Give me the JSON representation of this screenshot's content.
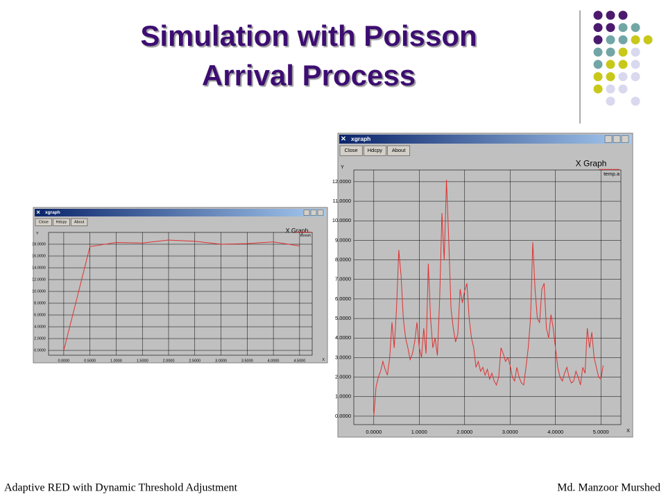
{
  "slide": {
    "title": [
      "Simulation with Poisson",
      "Arrival Process"
    ],
    "footer_left": "Adaptive RED with Dynamic Threshold Adjustment",
    "footer_right": "Md. Manzoor Murshed"
  },
  "windows": [
    {
      "title": "xgraph",
      "buttons": [
        "Close",
        "Hdcpy",
        "About"
      ],
      "graph_title": "X Graph",
      "y_axis_label": "Y",
      "x_axis_label": "X",
      "chart_data": {
        "type": "line",
        "grid": true,
        "x": [
          0,
          0.5,
          1,
          1.5,
          2,
          2.5,
          3,
          3.5,
          4,
          4.5
        ],
        "series": [
          {
            "name": "thresh",
            "color": "#e03030",
            "values": [
              0,
              17.6,
              18.3,
              18.2,
              18.7,
              18.5,
              18.0,
              18.1,
              18.4,
              17.7
            ]
          }
        ],
        "xlim": [
          -0.29,
          4.74
        ],
        "ylim": [
          -0.82,
          20
        ],
        "xticks": [
          {
            "value": 0,
            "label": "0.0000"
          },
          {
            "value": 0.5,
            "label": "0.5000"
          },
          {
            "value": 1,
            "label": "1.0000"
          },
          {
            "value": 1.5,
            "label": "1.5000"
          },
          {
            "value": 2,
            "label": "2.0000"
          },
          {
            "value": 2.5,
            "label": "2.5000"
          },
          {
            "value": 3,
            "label": "3.0000"
          },
          {
            "value": 3.5,
            "label": "3.5000"
          },
          {
            "value": 4,
            "label": "4.0000"
          },
          {
            "value": 4.5,
            "label": "4.5000"
          }
        ],
        "yticks": [
          {
            "value": 0,
            "label": "0.0000"
          },
          {
            "value": 2,
            "label": "2.0000"
          },
          {
            "value": 4,
            "label": "4.0000"
          },
          {
            "value": 6,
            "label": "6.0000"
          },
          {
            "value": 8,
            "label": "8.0000"
          },
          {
            "value": 10,
            "label": "10.0000"
          },
          {
            "value": 12,
            "label": "12.0000"
          },
          {
            "value": 14,
            "label": "14.0000"
          },
          {
            "value": 16,
            "label": "16.0000"
          },
          {
            "value": 18,
            "label": "18.0000"
          }
        ]
      }
    },
    {
      "title": "xgraph",
      "buttons": [
        "Close",
        "Hdcpy",
        "About"
      ],
      "graph_title": "X Graph",
      "y_axis_label": "Y",
      "x_axis_label": "X",
      "chart_data": {
        "type": "line",
        "grid": true,
        "x": [
          0,
          0.05,
          0.1,
          0.15,
          0.2,
          0.25,
          0.3,
          0.35,
          0.4,
          0.45,
          0.5,
          0.55,
          0.6,
          0.65,
          0.7,
          0.75,
          0.8,
          0.85,
          0.9,
          0.95,
          1.0,
          1.05,
          1.1,
          1.15,
          1.2,
          1.25,
          1.3,
          1.35,
          1.4,
          1.45,
          1.5,
          1.55,
          1.6,
          1.65,
          1.7,
          1.75,
          1.8,
          1.85,
          1.9,
          1.95,
          2.0,
          2.05,
          2.1,
          2.15,
          2.2,
          2.25,
          2.3,
          2.35,
          2.4,
          2.45,
          2.5,
          2.55,
          2.6,
          2.65,
          2.7,
          2.75,
          2.8,
          2.85,
          2.9,
          2.95,
          3.0,
          3.05,
          3.1,
          3.15,
          3.2,
          3.25,
          3.3,
          3.35,
          3.4,
          3.45,
          3.5,
          3.55,
          3.6,
          3.65,
          3.7,
          3.75,
          3.8,
          3.85,
          3.9,
          3.95,
          4.0,
          4.05,
          4.1,
          4.15,
          4.2,
          4.25,
          4.3,
          4.35,
          4.4,
          4.45,
          4.5,
          4.55,
          4.6,
          4.65,
          4.7,
          4.75,
          4.8,
          4.85,
          4.9,
          4.95,
          5.0,
          5.05
        ],
        "series": [
          {
            "name": "temp.a",
            "color": "#e03030",
            "values": [
              0,
              1.5,
              2.0,
              2.3,
              2.8,
              2.4,
              2.1,
              3.0,
              4.8,
              3.5,
              5.5,
              8.5,
              7.2,
              5.0,
              4.0,
              3.5,
              2.9,
              3.2,
              3.8,
              4.8,
              3.5,
              3.0,
              4.5,
              3.2,
              7.8,
              5.0,
              3.5,
              4.0,
              3.1,
              6.0,
              10.4,
              8.0,
              12.1,
              9.0,
              5.5,
              4.5,
              3.8,
              4.2,
              6.5,
              5.8,
              6.4,
              6.8,
              5.0,
              4.0,
              3.5,
              2.5,
              2.8,
              2.3,
              2.5,
              2.1,
              2.4,
              1.9,
              2.2,
              1.8,
              1.6,
              2.0,
              3.5,
              3.2,
              2.8,
              3.0,
              2.6,
              2.0,
              1.8,
              2.5,
              2.0,
              1.7,
              1.6,
              2.5,
              3.5,
              5.0,
              8.9,
              6.5,
              5.0,
              4.8,
              6.5,
              6.8,
              4.5,
              4.0,
              5.2,
              4.5,
              3.5,
              2.5,
              2.0,
              1.8,
              2.2,
              2.5,
              2.0,
              1.7,
              1.8,
              2.3,
              2.0,
              1.6,
              2.5,
              2.2,
              4.5,
              3.5,
              4.3,
              3.0,
              2.5,
              2.0,
              1.9,
              2.6
            ]
          }
        ],
        "xlim": [
          -0.44,
          5.44
        ],
        "ylim": [
          -0.43,
          12.6
        ],
        "xticks": [
          {
            "value": 0,
            "label": "0.0000"
          },
          {
            "value": 1,
            "label": "1.0000"
          },
          {
            "value": 2,
            "label": "2.0000"
          },
          {
            "value": 3,
            "label": "3.0000"
          },
          {
            "value": 4,
            "label": "4.0000"
          },
          {
            "value": 5,
            "label": "5.0000"
          }
        ],
        "yticks": [
          {
            "value": 0,
            "label": "0.0000"
          },
          {
            "value": 1,
            "label": "1.0000"
          },
          {
            "value": 2,
            "label": "2.0000"
          },
          {
            "value": 3,
            "label": "3.0000"
          },
          {
            "value": 4,
            "label": "4.0000"
          },
          {
            "value": 5,
            "label": "5.0000"
          },
          {
            "value": 6,
            "label": "6.0000"
          },
          {
            "value": 7,
            "label": "7.0000"
          },
          {
            "value": 8,
            "label": "8.0000"
          },
          {
            "value": 9,
            "label": "9.0000"
          },
          {
            "value": 10,
            "label": "10.0000"
          },
          {
            "value": 11,
            "label": "11.0000"
          },
          {
            "value": 12,
            "label": "12.0000"
          }
        ]
      }
    }
  ]
}
